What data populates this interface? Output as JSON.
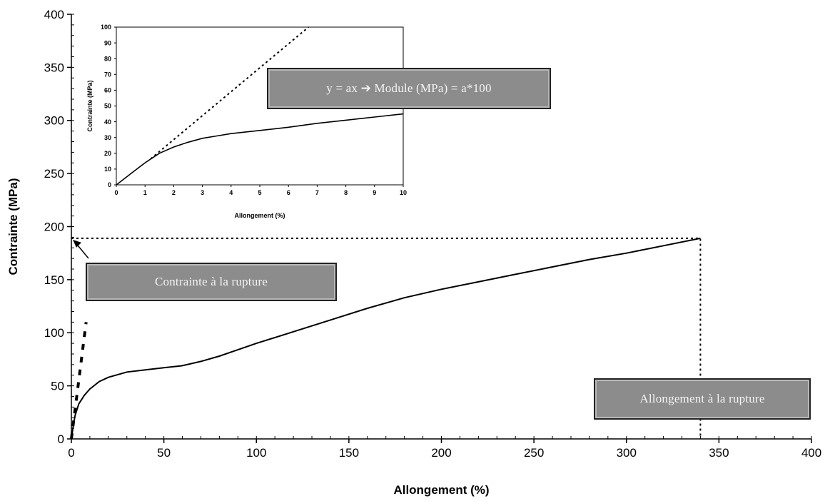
{
  "chart_data": [
    {
      "type": "line",
      "xlabel": "Allongement (%)",
      "ylabel": "Contrainte (MPa)",
      "xlim": [
        0,
        400
      ],
      "ylim": [
        0,
        400
      ],
      "xticks": [
        0,
        50,
        100,
        150,
        200,
        250,
        300,
        350,
        400
      ],
      "yticks": [
        0,
        50,
        100,
        150,
        200,
        250,
        300,
        350,
        400
      ],
      "grid": false,
      "series": [
        {
          "style": "solid",
          "x": [
            0,
            1,
            2,
            4,
            7,
            10,
            15,
            20,
            30,
            40,
            50,
            60,
            70,
            80,
            90,
            100,
            120,
            140,
            160,
            180,
            200,
            220,
            240,
            260,
            280,
            300,
            320,
            340
          ],
          "y": [
            0,
            12,
            22,
            33,
            41,
            47,
            54,
            58,
            63,
            65,
            67,
            69,
            73,
            78,
            84,
            90,
            101,
            112,
            123,
            133,
            141,
            148,
            155,
            162,
            169,
            175,
            182,
            189
          ]
        },
        {
          "style": "dashed",
          "x": [
            0,
            8
          ],
          "y": [
            0,
            110
          ]
        },
        {
          "style": "dotted",
          "x": [
            0,
            340,
            340
          ],
          "y": [
            189,
            189,
            0
          ]
        }
      ],
      "annotations": [
        {
          "text": "Contrainte à la rupture"
        },
        {
          "text": "Allongement à la rupture"
        },
        {
          "text": "y = ax ➔ Module (MPa) = a*100"
        }
      ]
    },
    {
      "type": "line",
      "xlabel": "Allongement (%)",
      "ylabel": "Contrainte (MPa)",
      "xlim": [
        0,
        10
      ],
      "ylim": [
        0,
        100
      ],
      "xticks": [
        0,
        1,
        2,
        3,
        4,
        5,
        6,
        7,
        8,
        9,
        10
      ],
      "yticks": [
        0,
        10,
        20,
        30,
        40,
        50,
        60,
        70,
        80,
        90,
        100
      ],
      "series": [
        {
          "style": "solid",
          "x": [
            0,
            0.25,
            0.5,
            0.75,
            1,
            1.25,
            1.5,
            2,
            2.5,
            3,
            3.5,
            4,
            5,
            6,
            7,
            8,
            9,
            10
          ],
          "y": [
            0,
            3.5,
            7,
            10.5,
            14,
            17,
            20,
            24,
            27,
            29.5,
            31,
            32.5,
            34.5,
            36.5,
            39,
            41,
            43,
            45
          ]
        },
        {
          "style": "dotted",
          "x": [
            1.2,
            6.7
          ],
          "y": [
            16.5,
            100
          ]
        }
      ]
    }
  ]
}
